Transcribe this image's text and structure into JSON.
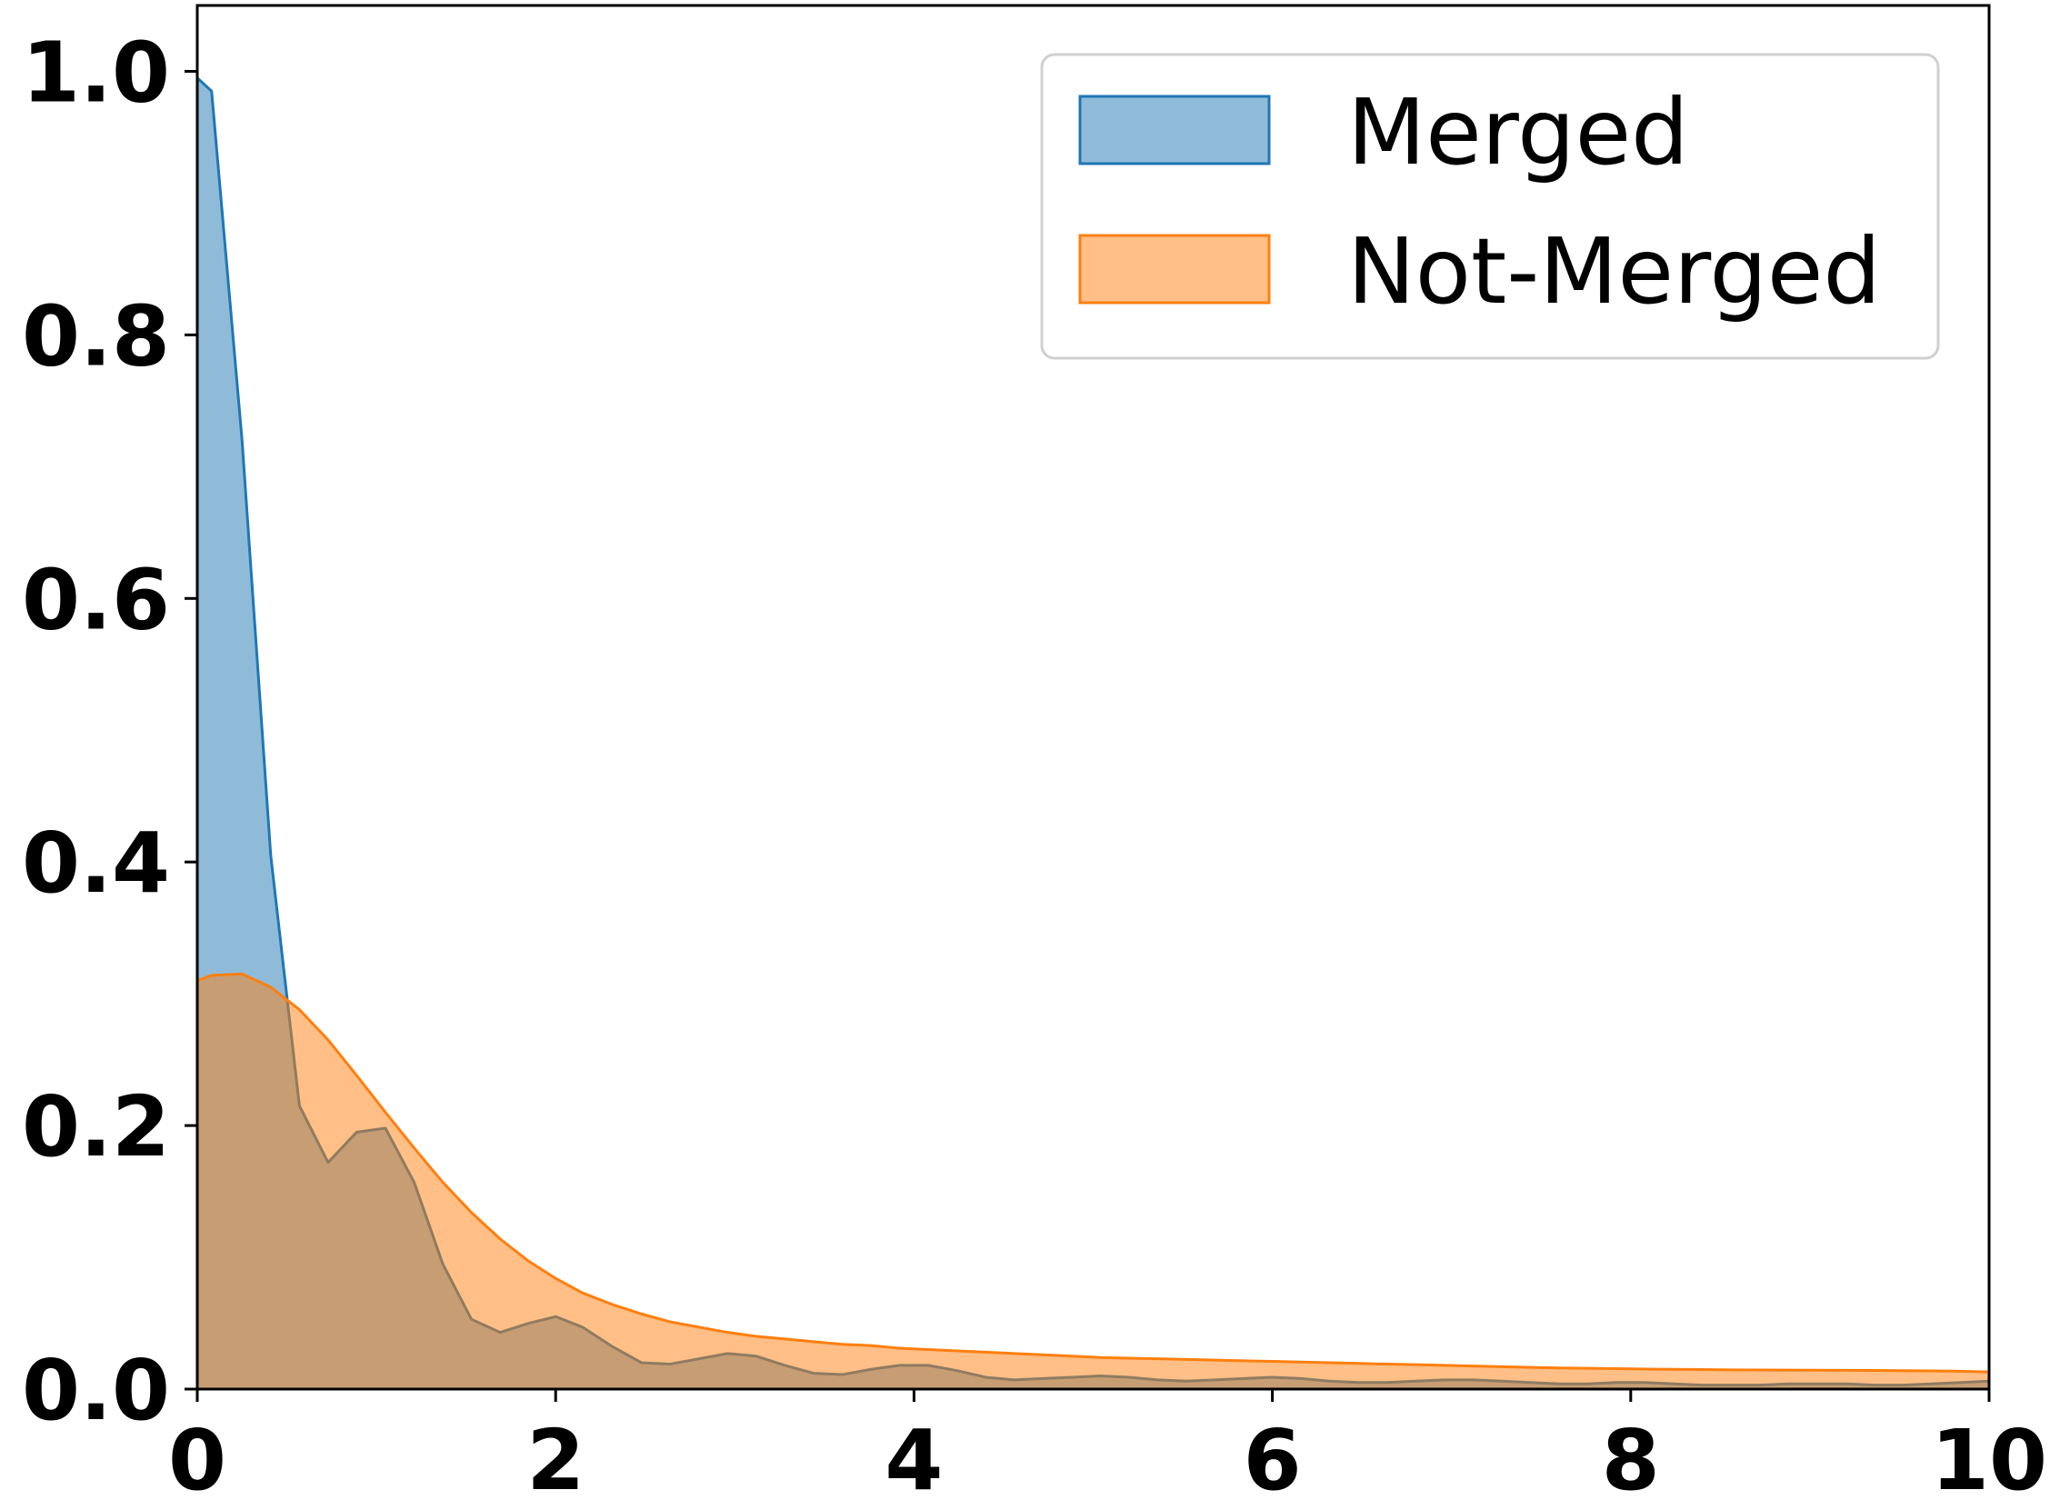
{
  "chart_data": {
    "type": "area",
    "title": "",
    "xlabel": "",
    "ylabel": "",
    "xlim": [
      0,
      10
    ],
    "ylim": [
      0,
      1.05
    ],
    "x_ticks": [
      0,
      2,
      4,
      6,
      8,
      10
    ],
    "x_tick_labels": [
      "0",
      "2",
      "4",
      "6",
      "8",
      "10"
    ],
    "y_ticks": [
      0.0,
      0.2,
      0.4,
      0.6,
      0.8,
      1.0
    ],
    "y_tick_labels": [
      "0.0",
      "0.2",
      "0.4",
      "0.6",
      "0.8",
      "1.0"
    ],
    "grid": false,
    "legend": {
      "placement": "top-right",
      "entries": [
        "Merged",
        "Not-Merged"
      ]
    },
    "series": [
      {
        "name": "Merged",
        "color": "#1f77b4",
        "fill": "#8fbad9",
        "x": [
          0,
          0.08,
          0.25,
          0.41,
          0.57,
          0.73,
          0.89,
          1.05,
          1.21,
          1.37,
          1.53,
          1.69,
          1.85,
          2.0,
          2.15,
          2.32,
          2.48,
          2.64,
          2.8,
          2.96,
          3.12,
          3.28,
          3.44,
          3.6,
          3.76,
          3.92,
          4.08,
          4.24,
          4.4,
          4.56,
          4.72,
          4.88,
          5.04,
          5.2,
          5.36,
          5.52,
          5.68,
          5.84,
          6.0,
          6.16,
          6.32,
          6.48,
          6.64,
          6.8,
          6.96,
          7.12,
          7.28,
          7.44,
          7.6,
          7.76,
          7.92,
          8.08,
          8.24,
          8.4,
          8.56,
          8.72,
          8.88,
          9.04,
          9.2,
          9.36,
          9.52,
          9.68,
          9.84,
          10.0
        ],
        "values": [
          0.995,
          0.985,
          0.72,
          0.405,
          0.215,
          0.172,
          0.195,
          0.198,
          0.157,
          0.095,
          0.053,
          0.043,
          0.05,
          0.055,
          0.047,
          0.032,
          0.02,
          0.019,
          0.023,
          0.027,
          0.025,
          0.018,
          0.012,
          0.011,
          0.015,
          0.018,
          0.018,
          0.014,
          0.009,
          0.007,
          0.008,
          0.009,
          0.01,
          0.009,
          0.007,
          0.006,
          0.007,
          0.008,
          0.009,
          0.008,
          0.006,
          0.005,
          0.005,
          0.006,
          0.007,
          0.007,
          0.006,
          0.005,
          0.004,
          0.004,
          0.005,
          0.005,
          0.004,
          0.003,
          0.003,
          0.003,
          0.004,
          0.004,
          0.004,
          0.003,
          0.003,
          0.004,
          0.005,
          0.006
        ]
      },
      {
        "name": "Not-Merged",
        "color": "#ff7f0e",
        "fill": "#ffbf86",
        "x": [
          0,
          0.08,
          0.25,
          0.41,
          0.57,
          0.73,
          0.89,
          1.05,
          1.21,
          1.37,
          1.53,
          1.69,
          1.85,
          2.0,
          2.15,
          2.32,
          2.48,
          2.64,
          2.8,
          2.96,
          3.12,
          3.28,
          3.44,
          3.6,
          3.76,
          3.92,
          4.08,
          4.24,
          4.4,
          4.56,
          4.72,
          4.88,
          5.04,
          5.2,
          5.36,
          5.52,
          5.68,
          5.84,
          6.0,
          6.16,
          6.32,
          6.48,
          6.64,
          6.8,
          6.96,
          7.12,
          7.28,
          7.44,
          7.6,
          7.76,
          7.92,
          8.08,
          8.24,
          8.4,
          8.56,
          8.72,
          8.88,
          9.04,
          9.2,
          9.36,
          9.52,
          9.68,
          9.84,
          10.0
        ],
        "values": [
          0.31,
          0.314,
          0.315,
          0.305,
          0.288,
          0.265,
          0.238,
          0.21,
          0.183,
          0.157,
          0.134,
          0.114,
          0.097,
          0.084,
          0.073,
          0.064,
          0.057,
          0.051,
          0.047,
          0.043,
          0.04,
          0.038,
          0.036,
          0.034,
          0.033,
          0.031,
          0.03,
          0.029,
          0.028,
          0.027,
          0.026,
          0.025,
          0.024,
          0.0235,
          0.023,
          0.0225,
          0.022,
          0.0215,
          0.021,
          0.0205,
          0.02,
          0.0195,
          0.019,
          0.0185,
          0.018,
          0.0175,
          0.017,
          0.0165,
          0.016,
          0.0158,
          0.0155,
          0.0152,
          0.015,
          0.0148,
          0.0146,
          0.0145,
          0.0144,
          0.0143,
          0.0142,
          0.0141,
          0.014,
          0.0138,
          0.0135,
          0.013
        ]
      }
    ]
  }
}
